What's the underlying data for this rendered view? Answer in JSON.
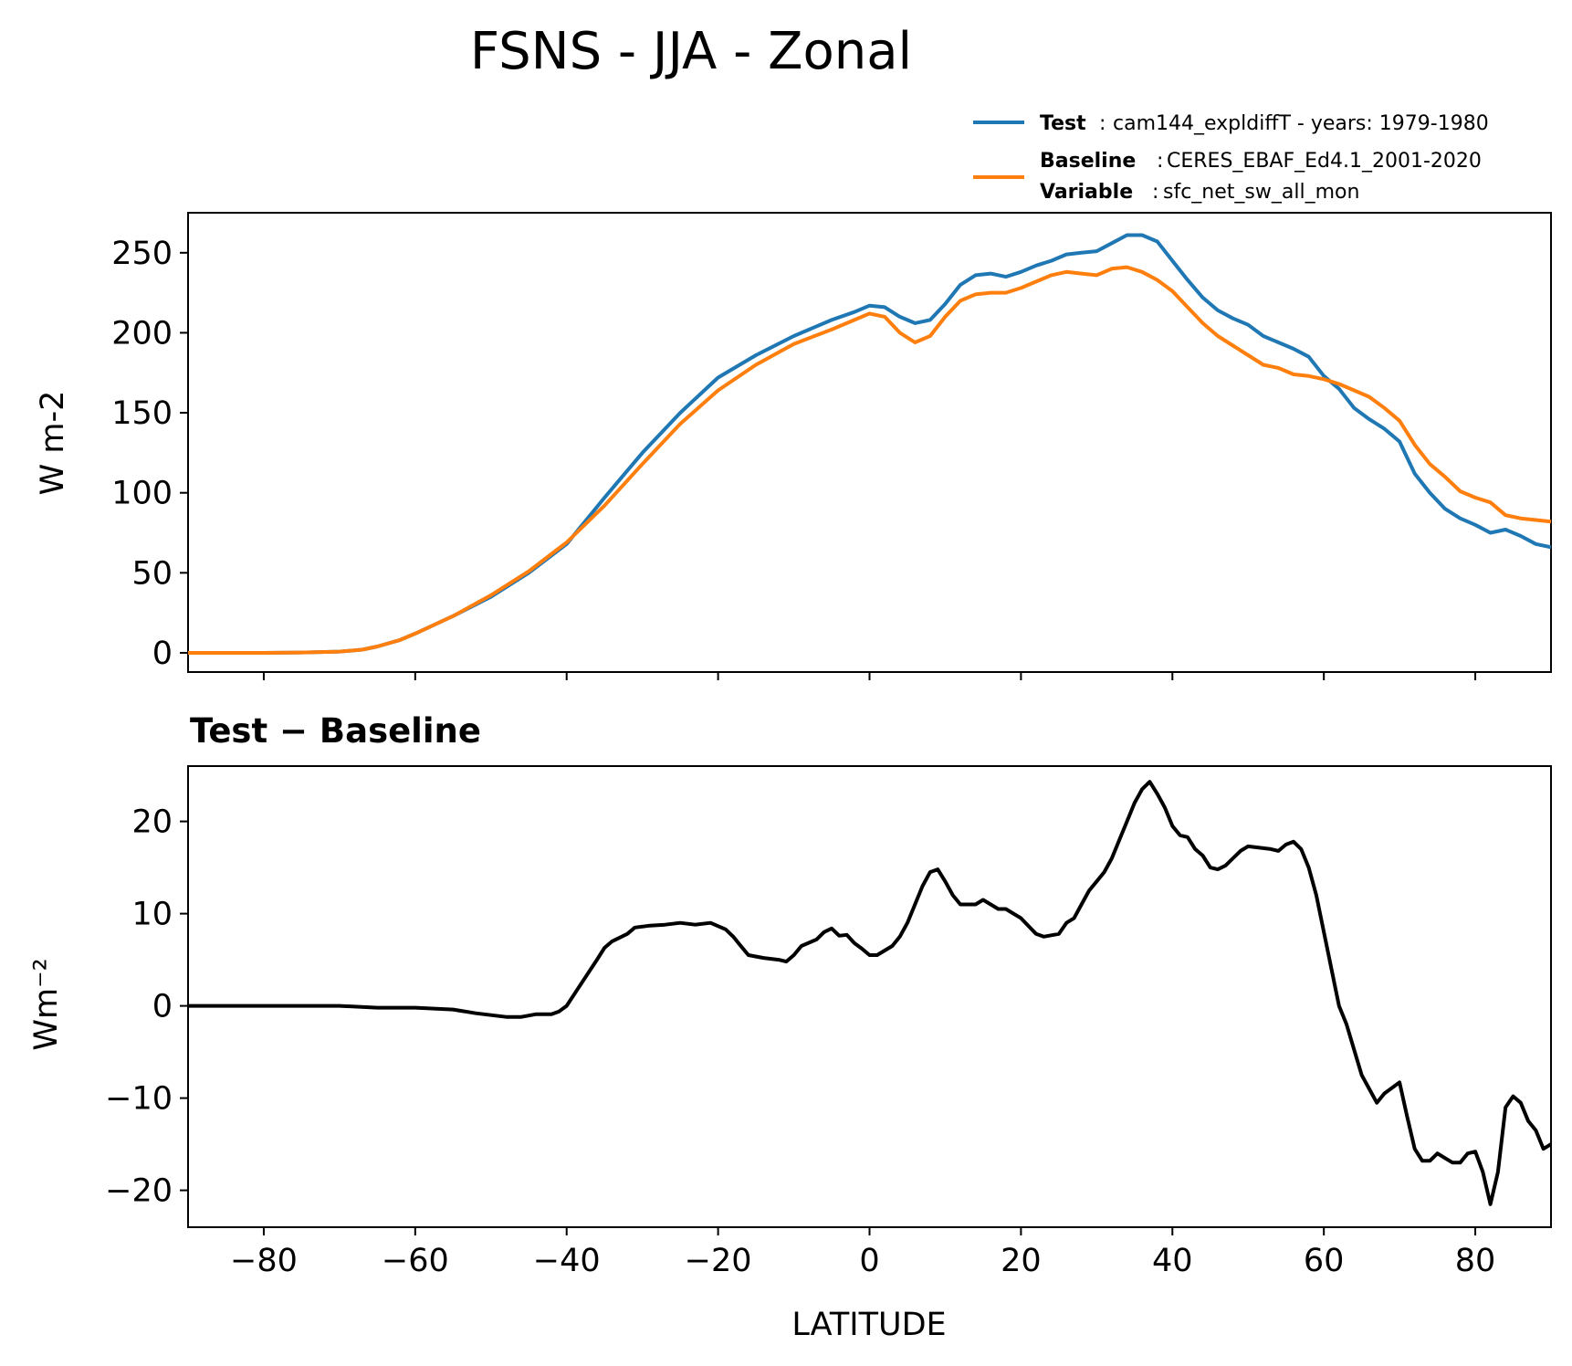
{
  "chart_data": [
    {
      "type": "line",
      "title": "FSNS - JJA - Zonal",
      "subtitle": "",
      "xlabel": "",
      "ylabel": "W m-2",
      "xlim": [
        -90,
        90
      ],
      "ylim": [
        -12,
        275
      ],
      "yticks": [
        0,
        50,
        100,
        150,
        200,
        250
      ],
      "xticks": [
        -80,
        -60,
        -40,
        -20,
        0,
        20,
        40,
        60,
        80
      ],
      "x_ticklabels_visible": false,
      "legend": {
        "placement": "top-right, above plot",
        "entries": [
          {
            "bold": "Test",
            "sep": ":",
            "text": "cam144_expldiffT - years: 1979-1980",
            "color": "#1f77b4"
          },
          {
            "bold": "Baseline",
            "sep": ":",
            "text": "CERES_EBAF_Ed4.1_2001-2020",
            "bold2": "Variable",
            "sep2": ":",
            "text2": "sfc_net_sw_all_mon",
            "color": "#ff7f0e"
          }
        ]
      },
      "series": [
        {
          "name": "Test",
          "color": "#1f77b4",
          "points": [
            [
              -90,
              0
            ],
            [
              -80,
              0
            ],
            [
              -75,
              0.2
            ],
            [
              -70,
              0.8
            ],
            [
              -67,
              2
            ],
            [
              -65,
              4
            ],
            [
              -62,
              8
            ],
            [
              -60,
              12
            ],
            [
              -55,
              23
            ],
            [
              -50,
              35
            ],
            [
              -45,
              50
            ],
            [
              -40,
              68
            ],
            [
              -35,
              97
            ],
            [
              -30,
              125
            ],
            [
              -25,
              150
            ],
            [
              -20,
              172
            ],
            [
              -15,
              186
            ],
            [
              -10,
              198
            ],
            [
              -5,
              208
            ],
            [
              -2,
              213
            ],
            [
              0,
              217
            ],
            [
              2,
              216
            ],
            [
              4,
              210
            ],
            [
              6,
              206
            ],
            [
              8,
              208
            ],
            [
              10,
              218
            ],
            [
              12,
              230
            ],
            [
              14,
              236
            ],
            [
              16,
              237
            ],
            [
              18,
              235
            ],
            [
              20,
              238
            ],
            [
              22,
              242
            ],
            [
              24,
              245
            ],
            [
              26,
              249
            ],
            [
              28,
              250
            ],
            [
              30,
              251
            ],
            [
              32,
              256
            ],
            [
              34,
              261
            ],
            [
              36,
              261
            ],
            [
              38,
              257
            ],
            [
              40,
              245
            ],
            [
              42,
              233
            ],
            [
              44,
              222
            ],
            [
              46,
              214
            ],
            [
              48,
              209
            ],
            [
              50,
              205
            ],
            [
              52,
              198
            ],
            [
              54,
              194
            ],
            [
              56,
              190
            ],
            [
              58,
              185
            ],
            [
              60,
              173
            ],
            [
              62,
              165
            ],
            [
              64,
              153
            ],
            [
              66,
              146
            ],
            [
              68,
              140
            ],
            [
              70,
              132
            ],
            [
              72,
              112
            ],
            [
              74,
              100
            ],
            [
              76,
              90
            ],
            [
              78,
              84
            ],
            [
              80,
              80
            ],
            [
              82,
              75
            ],
            [
              84,
              77
            ],
            [
              86,
              73
            ],
            [
              88,
              68
            ],
            [
              90,
              66
            ]
          ]
        },
        {
          "name": "Baseline",
          "color": "#ff7f0e",
          "points": [
            [
              -90,
              0
            ],
            [
              -80,
              0
            ],
            [
              -75,
              0.2
            ],
            [
              -70,
              0.8
            ],
            [
              -67,
              2
            ],
            [
              -65,
              4
            ],
            [
              -62,
              8
            ],
            [
              -60,
              12
            ],
            [
              -55,
              23
            ],
            [
              -50,
              36
            ],
            [
              -45,
              51
            ],
            [
              -40,
              69
            ],
            [
              -35,
              92
            ],
            [
              -30,
              118
            ],
            [
              -25,
              143
            ],
            [
              -20,
              164
            ],
            [
              -15,
              180
            ],
            [
              -10,
              193
            ],
            [
              -5,
              202
            ],
            [
              -2,
              208
            ],
            [
              0,
              212
            ],
            [
              2,
              210
            ],
            [
              4,
              200
            ],
            [
              6,
              194
            ],
            [
              8,
              198
            ],
            [
              10,
              210
            ],
            [
              12,
              220
            ],
            [
              14,
              224
            ],
            [
              16,
              225
            ],
            [
              18,
              225
            ],
            [
              20,
              228
            ],
            [
              22,
              232
            ],
            [
              24,
              236
            ],
            [
              26,
              238
            ],
            [
              28,
              237
            ],
            [
              30,
              236
            ],
            [
              32,
              240
            ],
            [
              34,
              241
            ],
            [
              36,
              238
            ],
            [
              38,
              233
            ],
            [
              40,
              226
            ],
            [
              42,
              216
            ],
            [
              44,
              206
            ],
            [
              46,
              198
            ],
            [
              48,
              192
            ],
            [
              50,
              186
            ],
            [
              52,
              180
            ],
            [
              54,
              178
            ],
            [
              56,
              174
            ],
            [
              58,
              173
            ],
            [
              60,
              171
            ],
            [
              62,
              168
            ],
            [
              64,
              164
            ],
            [
              66,
              160
            ],
            [
              68,
              153
            ],
            [
              70,
              145
            ],
            [
              72,
              130
            ],
            [
              74,
              118
            ],
            [
              76,
              110
            ],
            [
              78,
              101
            ],
            [
              80,
              97
            ],
            [
              82,
              94
            ],
            [
              84,
              86
            ],
            [
              86,
              84
            ],
            [
              88,
              83
            ],
            [
              90,
              82
            ]
          ]
        }
      ]
    },
    {
      "type": "line",
      "title": "",
      "subtitle": "Test − Baseline",
      "xlabel": "LATITUDE",
      "ylabel": "Wm⁻²",
      "xlim": [
        -90,
        90
      ],
      "ylim": [
        -24,
        26
      ],
      "yticks": [
        -20,
        -10,
        0,
        10,
        20
      ],
      "ytick_labels": [
        "−20",
        "−10",
        "0",
        "10",
        "20"
      ],
      "xticks": [
        -80,
        -60,
        -40,
        -20,
        0,
        20,
        40,
        60,
        80
      ],
      "xtick_labels": [
        "−80",
        "−60",
        "−40",
        "−20",
        "0",
        "20",
        "40",
        "60",
        "80"
      ],
      "x_ticklabels_visible": true,
      "series": [
        {
          "name": "Test − Baseline",
          "color": "#000000",
          "points": [
            [
              -90,
              0
            ],
            [
              -75,
              0
            ],
            [
              -70,
              0
            ],
            [
              -65,
              -0.2
            ],
            [
              -60,
              -0.2
            ],
            [
              -55,
              -0.4
            ],
            [
              -52,
              -0.8
            ],
            [
              -50,
              -1
            ],
            [
              -48,
              -1.2
            ],
            [
              -46,
              -1.2
            ],
            [
              -44,
              -0.9
            ],
            [
              -42,
              -0.9
            ],
            [
              -41,
              -0.6
            ],
            [
              -40,
              0
            ],
            [
              -38,
              2.5
            ],
            [
              -36,
              5
            ],
            [
              -35,
              6.3
            ],
            [
              -34,
              7
            ],
            [
              -32,
              7.8
            ],
            [
              -31,
              8.5
            ],
            [
              -29,
              8.7
            ],
            [
              -27,
              8.8
            ],
            [
              -25,
              9
            ],
            [
              -23,
              8.8
            ],
            [
              -21,
              9
            ],
            [
              -19,
              8.3
            ],
            [
              -18,
              7.5
            ],
            [
              -17,
              6.5
            ],
            [
              -16,
              5.5
            ],
            [
              -14,
              5.2
            ],
            [
              -12,
              5
            ],
            [
              -11,
              4.8
            ],
            [
              -10,
              5.5
            ],
            [
              -9,
              6.5
            ],
            [
              -7,
              7.2
            ],
            [
              -6,
              8
            ],
            [
              -5,
              8.4
            ],
            [
              -4,
              7.6
            ],
            [
              -3,
              7.7
            ],
            [
              -2,
              6.8
            ],
            [
              -1,
              6.2
            ],
            [
              0,
              5.5
            ],
            [
              1,
              5.5
            ],
            [
              3,
              6.5
            ],
            [
              4,
              7.5
            ],
            [
              5,
              9
            ],
            [
              6,
              11
            ],
            [
              7,
              13
            ],
            [
              8,
              14.5
            ],
            [
              9,
              14.8
            ],
            [
              10,
              13.5
            ],
            [
              11,
              12
            ],
            [
              12,
              11
            ],
            [
              14,
              11
            ],
            [
              15,
              11.5
            ],
            [
              16,
              11
            ],
            [
              17,
              10.5
            ],
            [
              18,
              10.5
            ],
            [
              20,
              9.5
            ],
            [
              22,
              7.8
            ],
            [
              23,
              7.5
            ],
            [
              25,
              7.8
            ],
            [
              26,
              9
            ],
            [
              27,
              9.5
            ],
            [
              28,
              11
            ],
            [
              29,
              12.5
            ],
            [
              30,
              13.5
            ],
            [
              31,
              14.5
            ],
            [
              32,
              16
            ],
            [
              33,
              18
            ],
            [
              34,
              20
            ],
            [
              35,
              22
            ],
            [
              36,
              23.5
            ],
            [
              37,
              24.3
            ],
            [
              38,
              23
            ],
            [
              39,
              21.5
            ],
            [
              40,
              19.5
            ],
            [
              41,
              18.5
            ],
            [
              42,
              18.3
            ],
            [
              43,
              17
            ],
            [
              44,
              16.3
            ],
            [
              45,
              15
            ],
            [
              46,
              14.8
            ],
            [
              47,
              15.2
            ],
            [
              48,
              16
            ],
            [
              49,
              16.8
            ],
            [
              50,
              17.3
            ],
            [
              51,
              17.2
            ],
            [
              53,
              17
            ],
            [
              54,
              16.8
            ],
            [
              55,
              17.5
            ],
            [
              56,
              17.8
            ],
            [
              57,
              17
            ],
            [
              58,
              15
            ],
            [
              59,
              12
            ],
            [
              60,
              8
            ],
            [
              61,
              4
            ],
            [
              62,
              0
            ],
            [
              63,
              -2
            ],
            [
              65,
              -7.5
            ],
            [
              66,
              -9
            ],
            [
              67,
              -10.5
            ],
            [
              68,
              -9.5
            ],
            [
              70,
              -8.3
            ],
            [
              71,
              -12
            ],
            [
              72,
              -15.5
            ],
            [
              73,
              -16.8
            ],
            [
              74,
              -16.8
            ],
            [
              75,
              -16
            ],
            [
              76,
              -16.5
            ],
            [
              77,
              -17
            ],
            [
              78,
              -17
            ],
            [
              79,
              -16
            ],
            [
              80,
              -15.8
            ],
            [
              81,
              -18
            ],
            [
              82,
              -21.5
            ],
            [
              83,
              -18
            ],
            [
              84,
              -11
            ],
            [
              85,
              -9.8
            ],
            [
              86,
              -10.5
            ],
            [
              87,
              -12.5
            ],
            [
              88,
              -13.5
            ],
            [
              89,
              -15.5
            ],
            [
              90,
              -15
            ]
          ]
        }
      ]
    }
  ]
}
